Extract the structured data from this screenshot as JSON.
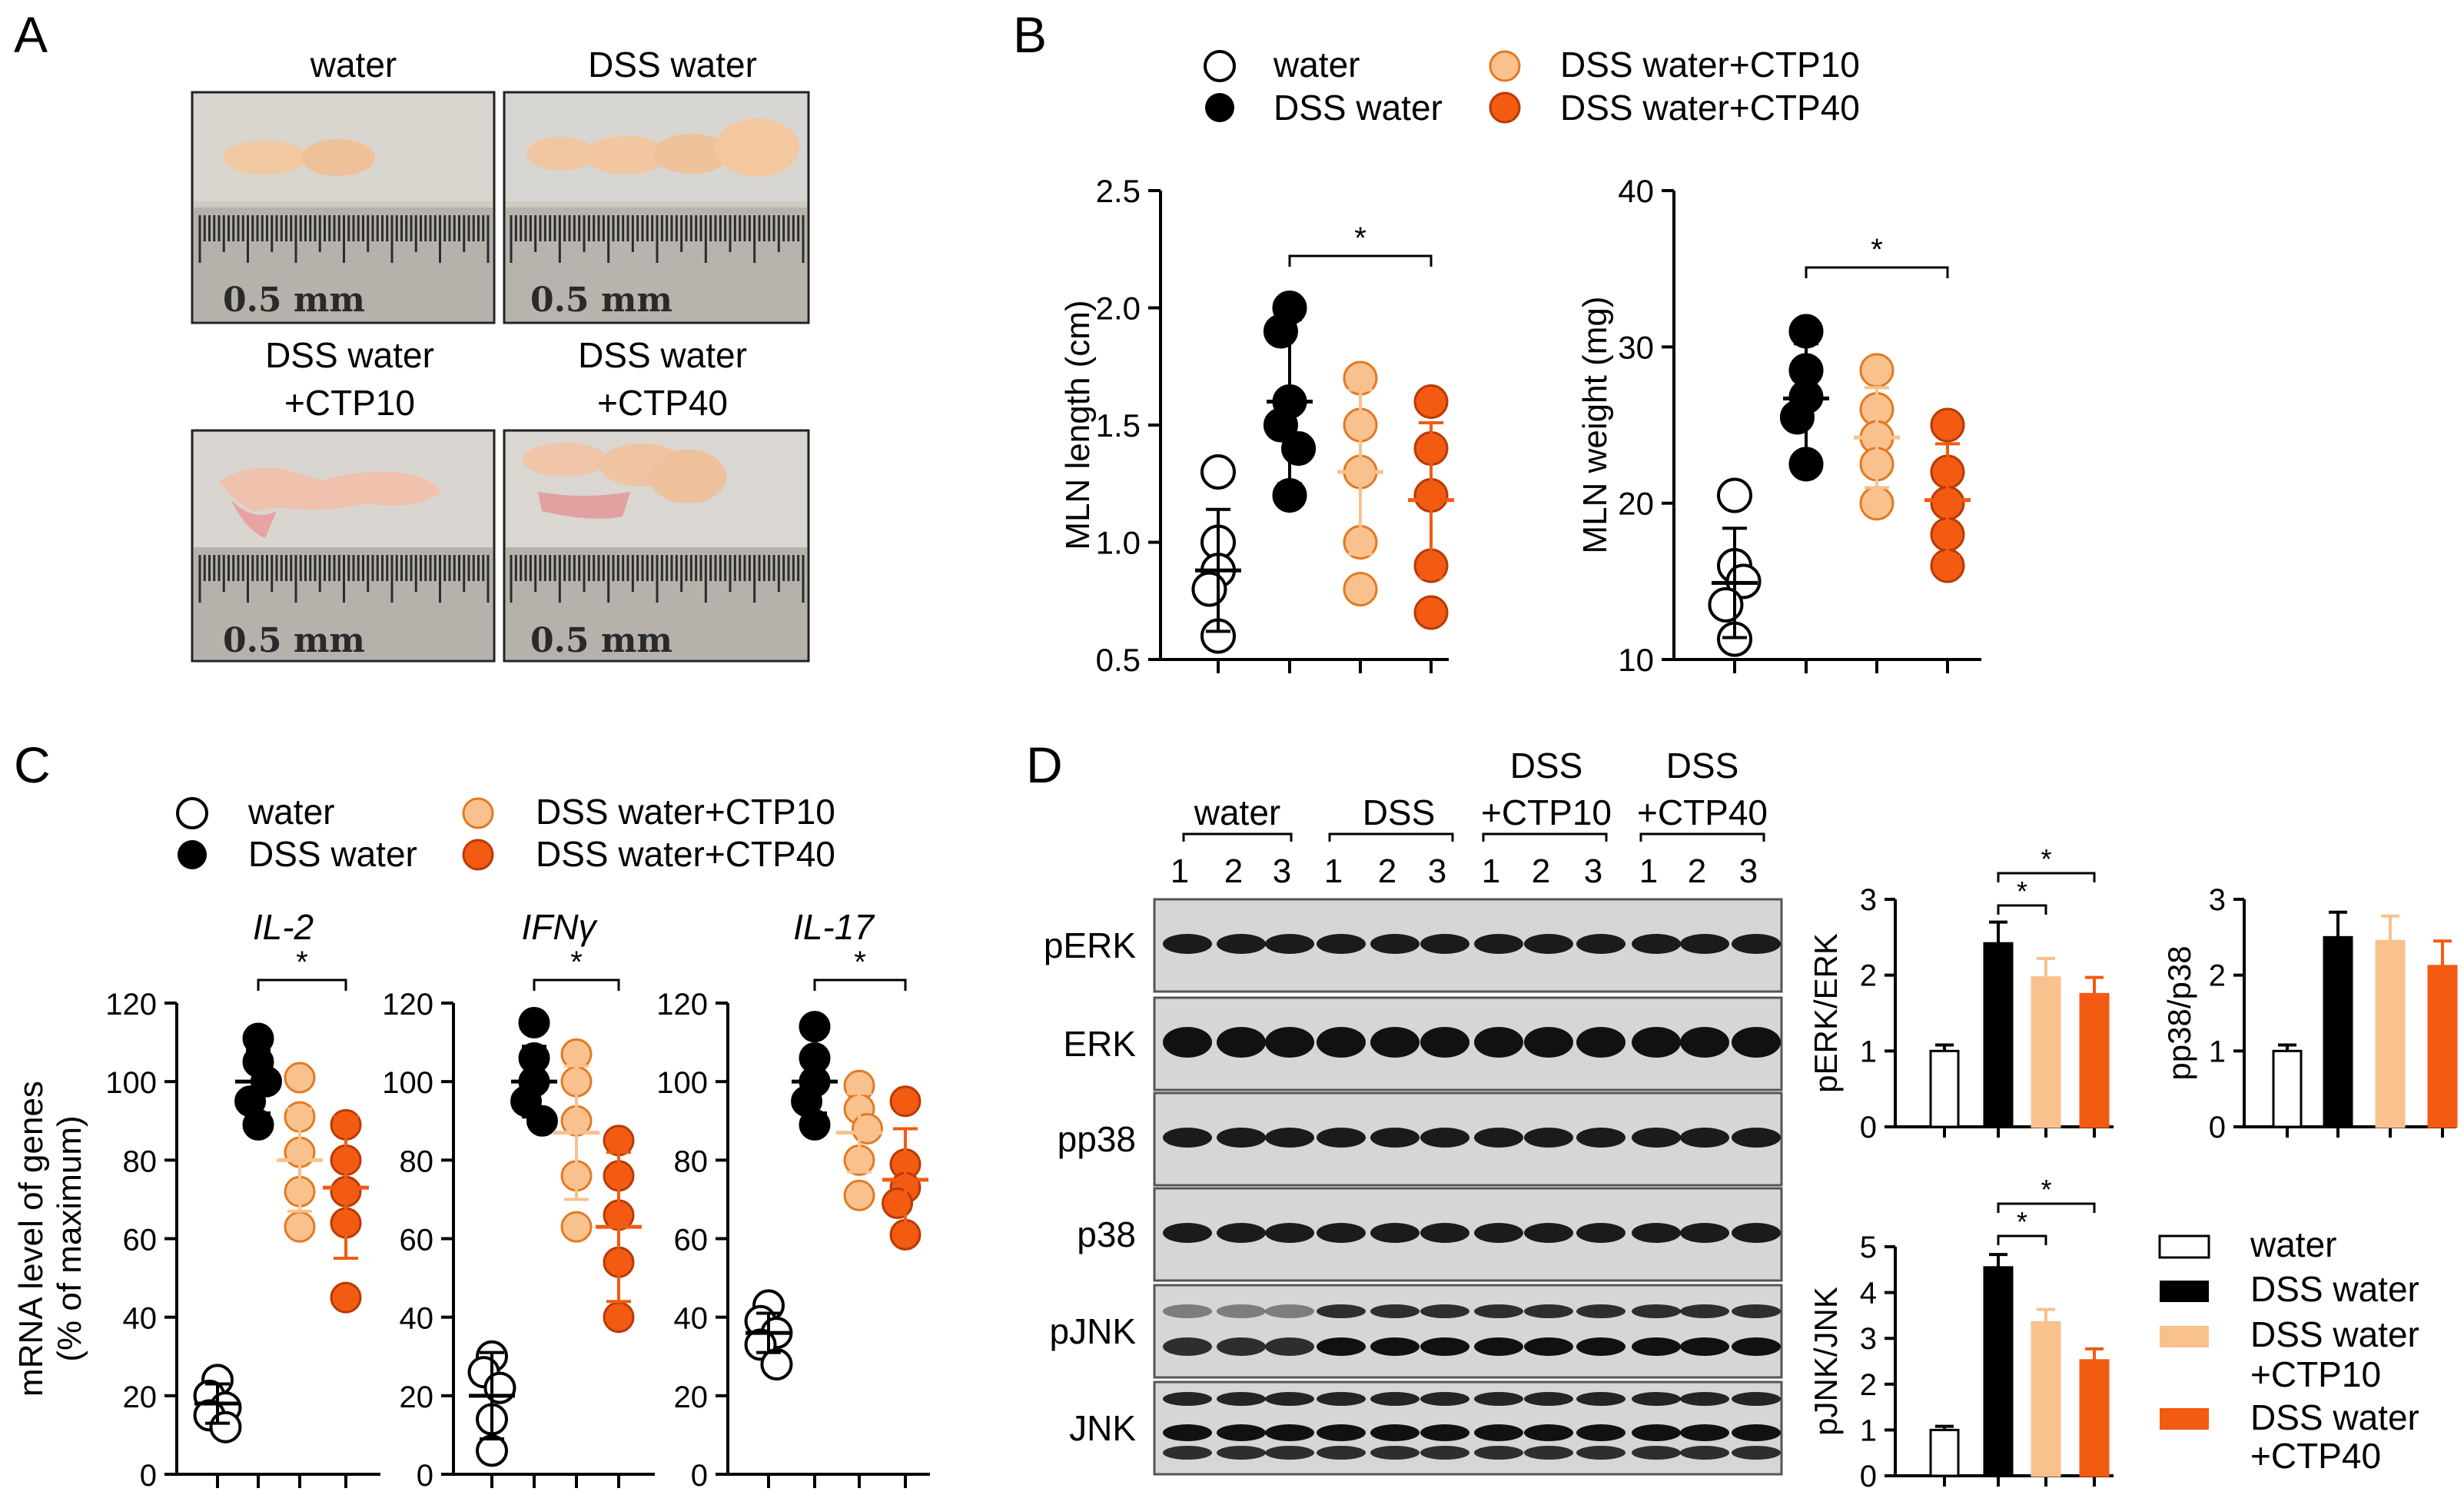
{
  "colors": {
    "water": "#ffffff",
    "dss": "#000000",
    "ctp10": "#f9c18e",
    "ctp40": "#f35a12",
    "ctp10_edge": "#e27a22",
    "ctp40_edge": "#b83a05"
  },
  "panels": {
    "a": "A",
    "b": "B",
    "c": "C",
    "d": "D"
  },
  "legend": {
    "water": "water",
    "dss": "DSS water",
    "ctp10": "DSS water+CTP10",
    "ctp40": "DSS water+CTP40",
    "ctp10_l1": "DSS water",
    "ctp10_l2": "+CTP10",
    "ctp40_l1": "DSS water",
    "ctp40_l2": "+CTP40"
  },
  "photos": {
    "water": "water",
    "dss": "DSS water",
    "ctp10_l1": "DSS water",
    "ctp10_l2": "+CTP10",
    "ctp40_l1": "DSS water",
    "ctp40_l2": "+CTP40",
    "ruler": "0.5 mm"
  },
  "signif": "*",
  "blot": {
    "groups": [
      "water",
      "DSS",
      "DSS",
      "DSS"
    ],
    "groups2": [
      "",
      "",
      "+CTP10",
      "+CTP40"
    ],
    "lanes": [
      "1",
      "2",
      "3"
    ],
    "rows": [
      "pERK",
      "ERK",
      "pp38",
      "p38",
      "pJNK",
      "JNK"
    ]
  },
  "chart_data": [
    {
      "id": "mln_length",
      "type": "scatter",
      "ylabel": "MLN length (cm)",
      "ylim": [
        0.5,
        2.5
      ],
      "yticks": [
        "0.5",
        "1.0",
        "1.5",
        "2.0",
        "2.5"
      ],
      "series": [
        {
          "name": "water",
          "points": [
            1.3,
            1.0,
            0.88,
            0.8,
            0.6
          ],
          "mean": 0.88,
          "err": 0.26
        },
        {
          "name": "DSS water",
          "points": [
            2.0,
            1.9,
            1.6,
            1.5,
            1.4,
            1.2
          ],
          "mean": 1.6,
          "err": 0.35
        },
        {
          "name": "DSS water+CTP10",
          "points": [
            1.7,
            1.5,
            1.3,
            1.0,
            0.8
          ],
          "mean": 1.3,
          "err": 0.35
        },
        {
          "name": "DSS water+CTP40",
          "points": [
            1.6,
            1.4,
            1.2,
            0.9,
            0.7
          ],
          "mean": 1.18,
          "err": 0.33
        }
      ]
    },
    {
      "id": "mln_weight",
      "type": "scatter",
      "ylabel": "MLN weight (mg)",
      "ylim": [
        10,
        40
      ],
      "yticks": [
        "10",
        "20",
        "30",
        "40"
      ],
      "series": [
        {
          "name": "water",
          "points": [
            20.5,
            16.0,
            15.0,
            13.5,
            11.3
          ],
          "mean": 14.9,
          "err": 3.5
        },
        {
          "name": "DSS water",
          "points": [
            31.0,
            28.5,
            26.8,
            25.5,
            22.5
          ],
          "mean": 26.7,
          "err": 3.5
        },
        {
          "name": "DSS water+CTP10",
          "points": [
            28.5,
            26.0,
            24.2,
            22.5,
            20.0
          ],
          "mean": 24.2,
          "err": 3.2
        },
        {
          "name": "DSS water+CTP40",
          "points": [
            25.0,
            22.0,
            20.0,
            18.0,
            16.0
          ],
          "mean": 20.2,
          "err": 3.6
        }
      ]
    },
    {
      "id": "il2",
      "type": "scatter",
      "title": "IL-2",
      "ylabel": "mRNA level of genes",
      "ylabel2": "(% of maximum)",
      "ylim": [
        0,
        120
      ],
      "yticks": [
        "0",
        "20",
        "40",
        "60",
        "80",
        "100",
        "120"
      ],
      "series": [
        {
          "name": "water",
          "points": [
            24,
            20,
            17,
            15,
            12
          ],
          "mean": 18,
          "err": 5
        },
        {
          "name": "DSS water",
          "points": [
            111,
            105,
            100,
            95,
            89
          ],
          "mean": 100,
          "err": 8
        },
        {
          "name": "DSS water+CTP10",
          "points": [
            101,
            91,
            82,
            72,
            63
          ],
          "mean": 80,
          "err": 13
        },
        {
          "name": "DSS water+CTP40",
          "points": [
            89,
            80,
            72,
            64,
            45
          ],
          "mean": 73,
          "err": 18
        }
      ]
    },
    {
      "id": "ifng",
      "type": "scatter",
      "title": "IFNγ",
      "ylim": [
        0,
        120
      ],
      "yticks": [
        "0",
        "20",
        "40",
        "60",
        "80",
        "100",
        "120"
      ],
      "series": [
        {
          "name": "water",
          "points": [
            30,
            26,
            22,
            14,
            6
          ],
          "mean": 20,
          "err": 11
        },
        {
          "name": "DSS water",
          "points": [
            115,
            106,
            100,
            95,
            90
          ],
          "mean": 100,
          "err": 9
        },
        {
          "name": "DSS water+CTP10",
          "points": [
            107,
            100,
            90,
            76,
            63
          ],
          "mean": 87,
          "err": 17
        },
        {
          "name": "DSS water+CTP40",
          "points": [
            85,
            76,
            66,
            54,
            40
          ],
          "mean": 63,
          "err": 19
        }
      ]
    },
    {
      "id": "il17",
      "type": "scatter",
      "title": "IL-17",
      "ylim": [
        0,
        120
      ],
      "yticks": [
        "0",
        "20",
        "40",
        "60",
        "80",
        "100",
        "120"
      ],
      "series": [
        {
          "name": "water",
          "points": [
            43,
            39,
            36,
            33,
            28
          ],
          "mean": 36,
          "err": 5
        },
        {
          "name": "DSS water",
          "points": [
            114,
            106,
            100,
            95,
            89
          ],
          "mean": 100,
          "err": 8
        },
        {
          "name": "DSS water+CTP10",
          "points": [
            99,
            93,
            88,
            80,
            71
          ],
          "mean": 87,
          "err": 10
        },
        {
          "name": "DSS water+CTP40",
          "points": [
            95,
            79,
            73,
            69,
            61
          ],
          "mean": 75,
          "err": 13
        }
      ]
    },
    {
      "id": "perk",
      "type": "bar",
      "ylabel": "pERK/ERK",
      "ylim": [
        0,
        3
      ],
      "yticks": [
        "0",
        "1",
        "2",
        "3"
      ],
      "categories": [
        "water",
        "DSS water",
        "DSS water+CTP10",
        "DSS water+CTP40"
      ],
      "values": [
        1.0,
        2.42,
        1.97,
        1.75
      ],
      "errors": [
        0.08,
        0.28,
        0.25,
        0.22
      ]
    },
    {
      "id": "pp38",
      "type": "bar",
      "ylabel": "pp38/p38",
      "ylim": [
        0,
        3
      ],
      "yticks": [
        "0",
        "1",
        "2",
        "3"
      ],
      "categories": [
        "water",
        "DSS water",
        "DSS water+CTP10",
        "DSS water+CTP40"
      ],
      "values": [
        1.0,
        2.5,
        2.45,
        2.12
      ],
      "errors": [
        0.08,
        0.33,
        0.33,
        0.33
      ]
    },
    {
      "id": "pjnk",
      "type": "bar",
      "ylabel": "pJNK/JNK",
      "ylim": [
        0,
        5
      ],
      "yticks": [
        "0",
        "1",
        "2",
        "3",
        "4",
        "5"
      ],
      "categories": [
        "water",
        "DSS water",
        "DSS water+CTP10",
        "DSS water+CTP40"
      ],
      "values": [
        1.0,
        4.55,
        3.35,
        2.52
      ],
      "errors": [
        0.08,
        0.28,
        0.28,
        0.25
      ]
    }
  ]
}
